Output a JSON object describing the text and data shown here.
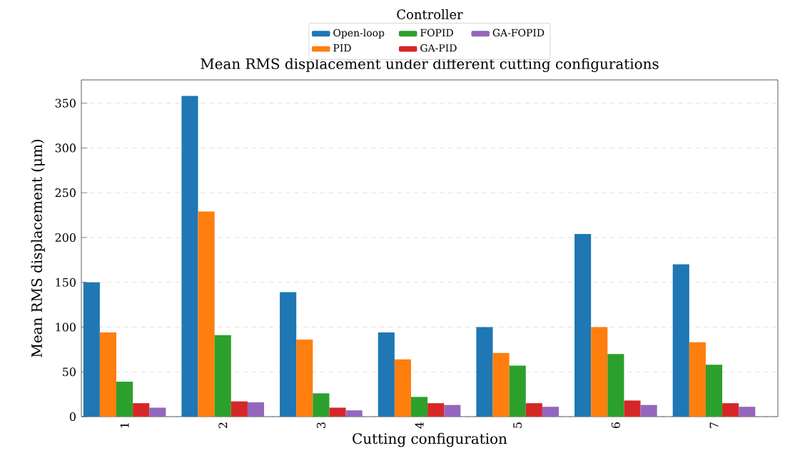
{
  "chart_data": {
    "type": "bar",
    "title": "Mean RMS displacement under different cutting configurations",
    "xlabel": "Cutting configuration",
    "ylabel": "Mean RMS displacement (μm)",
    "legend_title": "Controller",
    "categories": [
      "1",
      "2",
      "3",
      "4",
      "5",
      "6",
      "7"
    ],
    "series": [
      {
        "name": "Open-loop",
        "color": "#1f77b4",
        "values": [
          150,
          358,
          139,
          94,
          100,
          204,
          170
        ]
      },
      {
        "name": "PID",
        "color": "#ff7f0e",
        "values": [
          94,
          229,
          86,
          64,
          71,
          100,
          83
        ]
      },
      {
        "name": "FOPID",
        "color": "#2ca02c",
        "values": [
          39,
          91,
          26,
          22,
          57,
          70,
          58
        ]
      },
      {
        "name": "GA-PID",
        "color": "#d62728",
        "values": [
          15,
          17,
          10,
          15,
          15,
          18,
          15
        ]
      },
      {
        "name": "GA-FOPID",
        "color": "#9467bd",
        "values": [
          10,
          16,
          7,
          13,
          11,
          13,
          11
        ]
      }
    ],
    "ylim": [
      0,
      376
    ],
    "yticks": [
      0,
      50,
      100,
      150,
      200,
      250,
      300,
      350
    ],
    "grid": "y",
    "legend": "top"
  }
}
